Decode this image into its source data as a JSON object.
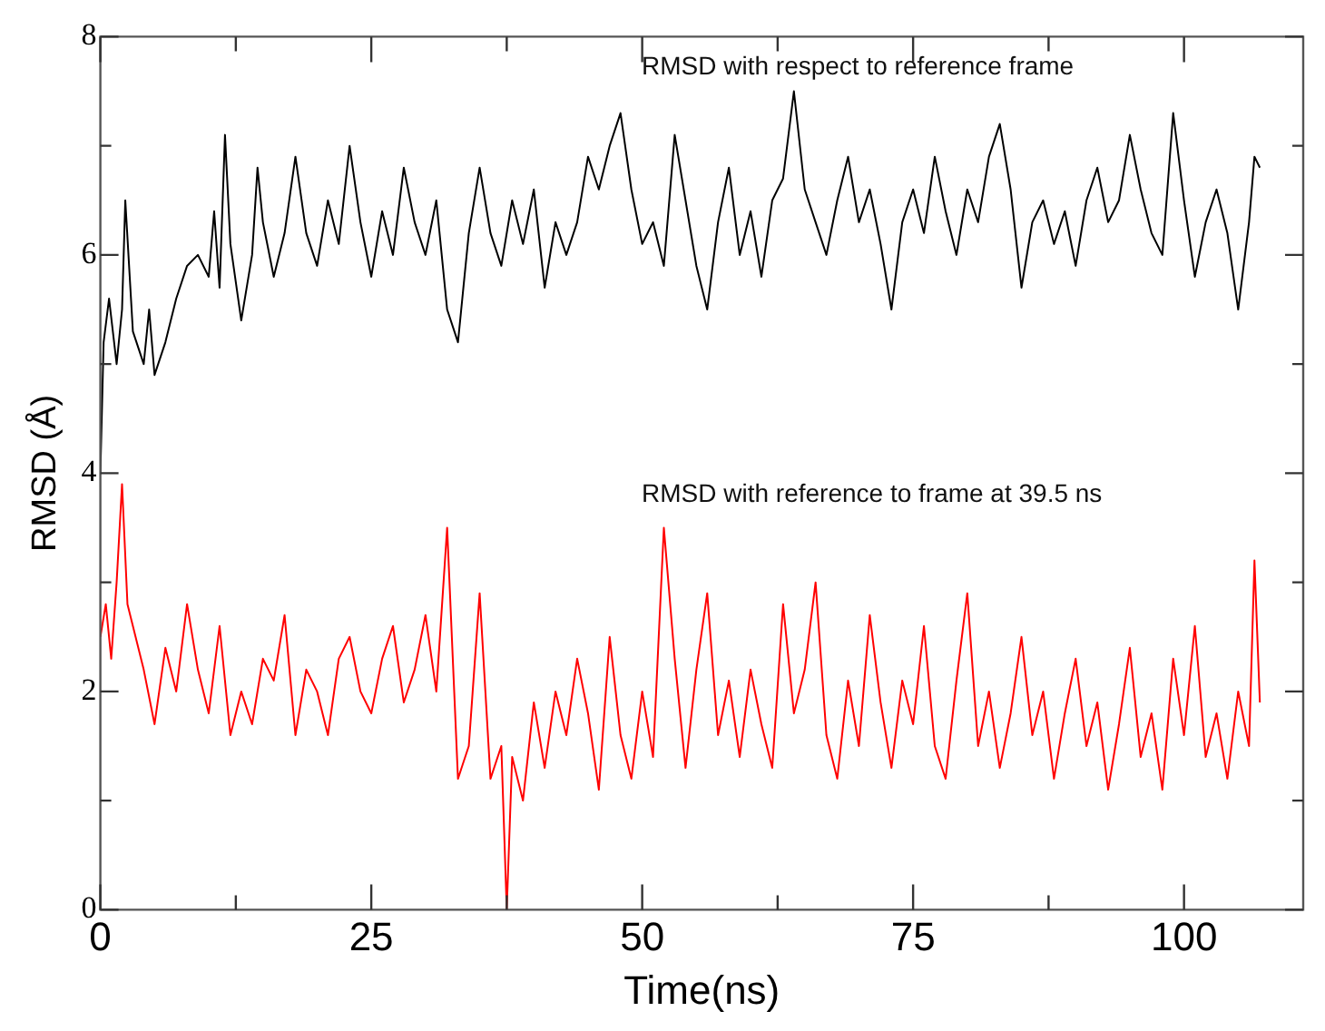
{
  "chart_data": {
    "type": "line",
    "xlabel": "Time(ns)",
    "ylabel": "RMSD (Å)",
    "xlim": [
      0,
      111
    ],
    "xticks": [
      0,
      {
        "value": 12.5,
        "label": null
      },
      25,
      {
        "value": 37.5,
        "label": null
      },
      50,
      {
        "value": 62.5,
        "label": null
      },
      75,
      {
        "value": 87.5,
        "label": null
      },
      100
    ],
    "ylim": [
      0,
      8
    ],
    "yticks": [
      0,
      {
        "value": 1,
        "label": null
      },
      2,
      {
        "value": 3,
        "label": null
      },
      4,
      {
        "value": 5,
        "label": null
      },
      6,
      {
        "value": 7,
        "label": null
      },
      8
    ],
    "grid": false,
    "legend": false,
    "marker": "none",
    "line_style": "solid",
    "series": [
      {
        "name": "RMSD with respect to reference frame",
        "color": "#000000",
        "x": [
          0,
          0.3,
          0.8,
          1.5,
          2,
          2.3,
          3,
          4,
          4.5,
          5,
          6,
          7,
          8,
          9,
          10,
          10.5,
          11,
          11.5,
          12,
          13,
          14,
          14.5,
          15,
          16,
          17,
          18,
          19,
          20,
          21,
          22,
          23,
          24,
          25,
          26,
          27,
          28,
          29,
          30,
          31,
          32,
          33,
          34,
          35,
          36,
          37,
          38,
          39,
          40,
          41,
          42,
          43,
          44,
          45,
          46,
          47,
          48,
          49,
          50,
          51,
          52,
          53,
          54,
          55,
          56,
          57,
          58,
          59,
          60,
          61,
          62,
          63,
          64,
          65,
          66,
          67,
          68,
          69,
          70,
          71,
          72,
          73,
          74,
          75,
          76,
          77,
          78,
          79,
          80,
          81,
          82,
          83,
          84,
          85,
          86,
          87,
          88,
          89,
          90,
          91,
          92,
          93,
          94,
          95,
          96,
          97,
          98,
          99,
          100,
          101,
          102,
          103,
          104,
          105,
          106,
          106.5,
          107
        ],
        "values": [
          4.0,
          5.2,
          5.6,
          5.0,
          5.5,
          6.5,
          5.3,
          5.0,
          5.5,
          4.9,
          5.2,
          5.6,
          5.9,
          6.0,
          5.8,
          6.4,
          5.7,
          7.1,
          6.1,
          5.4,
          6.0,
          6.8,
          6.3,
          5.8,
          6.2,
          6.9,
          6.2,
          5.9,
          6.5,
          6.1,
          7.0,
          6.3,
          5.8,
          6.4,
          6.0,
          6.8,
          6.3,
          6.0,
          6.5,
          5.5,
          5.2,
          6.2,
          6.8,
          6.2,
          5.9,
          6.5,
          6.1,
          6.6,
          5.7,
          6.3,
          6.0,
          6.3,
          6.9,
          6.6,
          7.0,
          7.3,
          6.6,
          6.1,
          6.3,
          5.9,
          7.1,
          6.5,
          5.9,
          5.5,
          6.3,
          6.8,
          6.0,
          6.4,
          5.8,
          6.5,
          6.7,
          7.5,
          6.6,
          6.3,
          6.0,
          6.5,
          6.9,
          6.3,
          6.6,
          6.1,
          5.5,
          6.3,
          6.6,
          6.2,
          6.9,
          6.4,
          6.0,
          6.6,
          6.3,
          6.9,
          7.2,
          6.6,
          5.7,
          6.3,
          6.5,
          6.1,
          6.4,
          5.9,
          6.5,
          6.8,
          6.3,
          6.5,
          7.1,
          6.6,
          6.2,
          6.0,
          7.3,
          6.5,
          5.8,
          6.3,
          6.6,
          6.2,
          5.5,
          6.3,
          6.9,
          6.8
        ]
      },
      {
        "name": "RMSD with reference to frame at 39.5 ns",
        "color": "#ff0000",
        "x": [
          0,
          0.5,
          1,
          1.5,
          2,
          2.5,
          3,
          4,
          5,
          6,
          7,
          8,
          9,
          10,
          11,
          12,
          13,
          14,
          15,
          16,
          17,
          18,
          19,
          20,
          21,
          22,
          23,
          24,
          25,
          26,
          27,
          28,
          29,
          30,
          31,
          32,
          33,
          34,
          35,
          36,
          37,
          37.5,
          38,
          39,
          40,
          41,
          42,
          43,
          44,
          45,
          46,
          47,
          48,
          49,
          50,
          51,
          52,
          53,
          54,
          55,
          56,
          57,
          58,
          59,
          60,
          61,
          62,
          63,
          64,
          65,
          66,
          67,
          68,
          69,
          70,
          71,
          72,
          73,
          74,
          75,
          76,
          77,
          78,
          79,
          80,
          81,
          82,
          83,
          84,
          85,
          86,
          87,
          88,
          89,
          90,
          91,
          92,
          93,
          94,
          95,
          96,
          97,
          98,
          99,
          100,
          101,
          102,
          103,
          104,
          105,
          106,
          106.5,
          107
        ],
        "values": [
          2.5,
          2.8,
          2.3,
          3.0,
          3.9,
          2.8,
          2.6,
          2.2,
          1.7,
          2.4,
          2.0,
          2.8,
          2.2,
          1.8,
          2.6,
          1.6,
          2.0,
          1.7,
          2.3,
          2.1,
          2.7,
          1.6,
          2.2,
          2.0,
          1.6,
          2.3,
          2.5,
          2.0,
          1.8,
          2.3,
          2.6,
          1.9,
          2.2,
          2.7,
          2.0,
          3.5,
          1.2,
          1.5,
          2.9,
          1.2,
          1.5,
          0.0,
          1.4,
          1.0,
          1.9,
          1.3,
          2.0,
          1.6,
          2.3,
          1.8,
          1.1,
          2.5,
          1.6,
          1.2,
          2.0,
          1.4,
          3.5,
          2.3,
          1.3,
          2.2,
          2.9,
          1.6,
          2.1,
          1.4,
          2.2,
          1.7,
          1.3,
          2.8,
          1.8,
          2.2,
          3.0,
          1.6,
          1.2,
          2.1,
          1.5,
          2.7,
          1.9,
          1.3,
          2.1,
          1.7,
          2.6,
          1.5,
          1.2,
          2.1,
          2.9,
          1.5,
          2.0,
          1.3,
          1.8,
          2.5,
          1.6,
          2.0,
          1.2,
          1.8,
          2.3,
          1.5,
          1.9,
          1.1,
          1.7,
          2.4,
          1.4,
          1.8,
          1.1,
          2.3,
          1.6,
          2.6,
          1.4,
          1.8,
          1.2,
          2.0,
          1.5,
          3.2,
          1.9
        ]
      }
    ]
  }
}
